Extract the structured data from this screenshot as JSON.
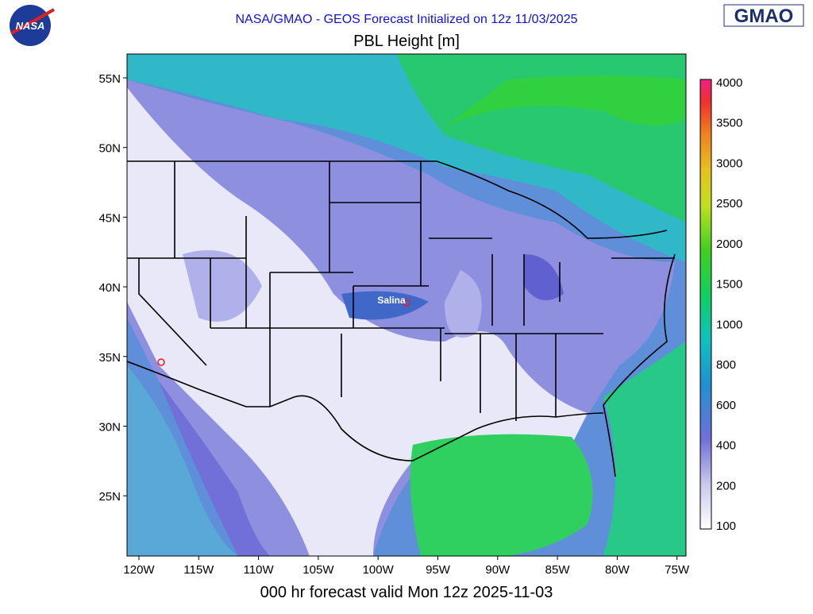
{
  "header": {
    "logo_left": "NASA",
    "subtitle": "NASA/GMAO - GEOS Forecast Initialized on 12z 11/03/2025",
    "title": "PBL Height [m]",
    "logo_right": "GMAO"
  },
  "map": {
    "lat_labels": [
      "55N",
      "50N",
      "45N",
      "40N",
      "35N",
      "30N",
      "25N"
    ],
    "lon_labels": [
      "120W",
      "115W",
      "110W",
      "105W",
      "100W",
      "95W",
      "90W",
      "85W",
      "80W",
      "75W"
    ],
    "city": "Salina"
  },
  "colorbar": {
    "labels": [
      4000,
      3500,
      3000,
      2500,
      2000,
      1500,
      1000,
      800,
      600,
      400,
      200,
      100
    ]
  },
  "footer": {
    "caption": "000 hr forecast valid Mon 12z 2025-11-03"
  }
}
